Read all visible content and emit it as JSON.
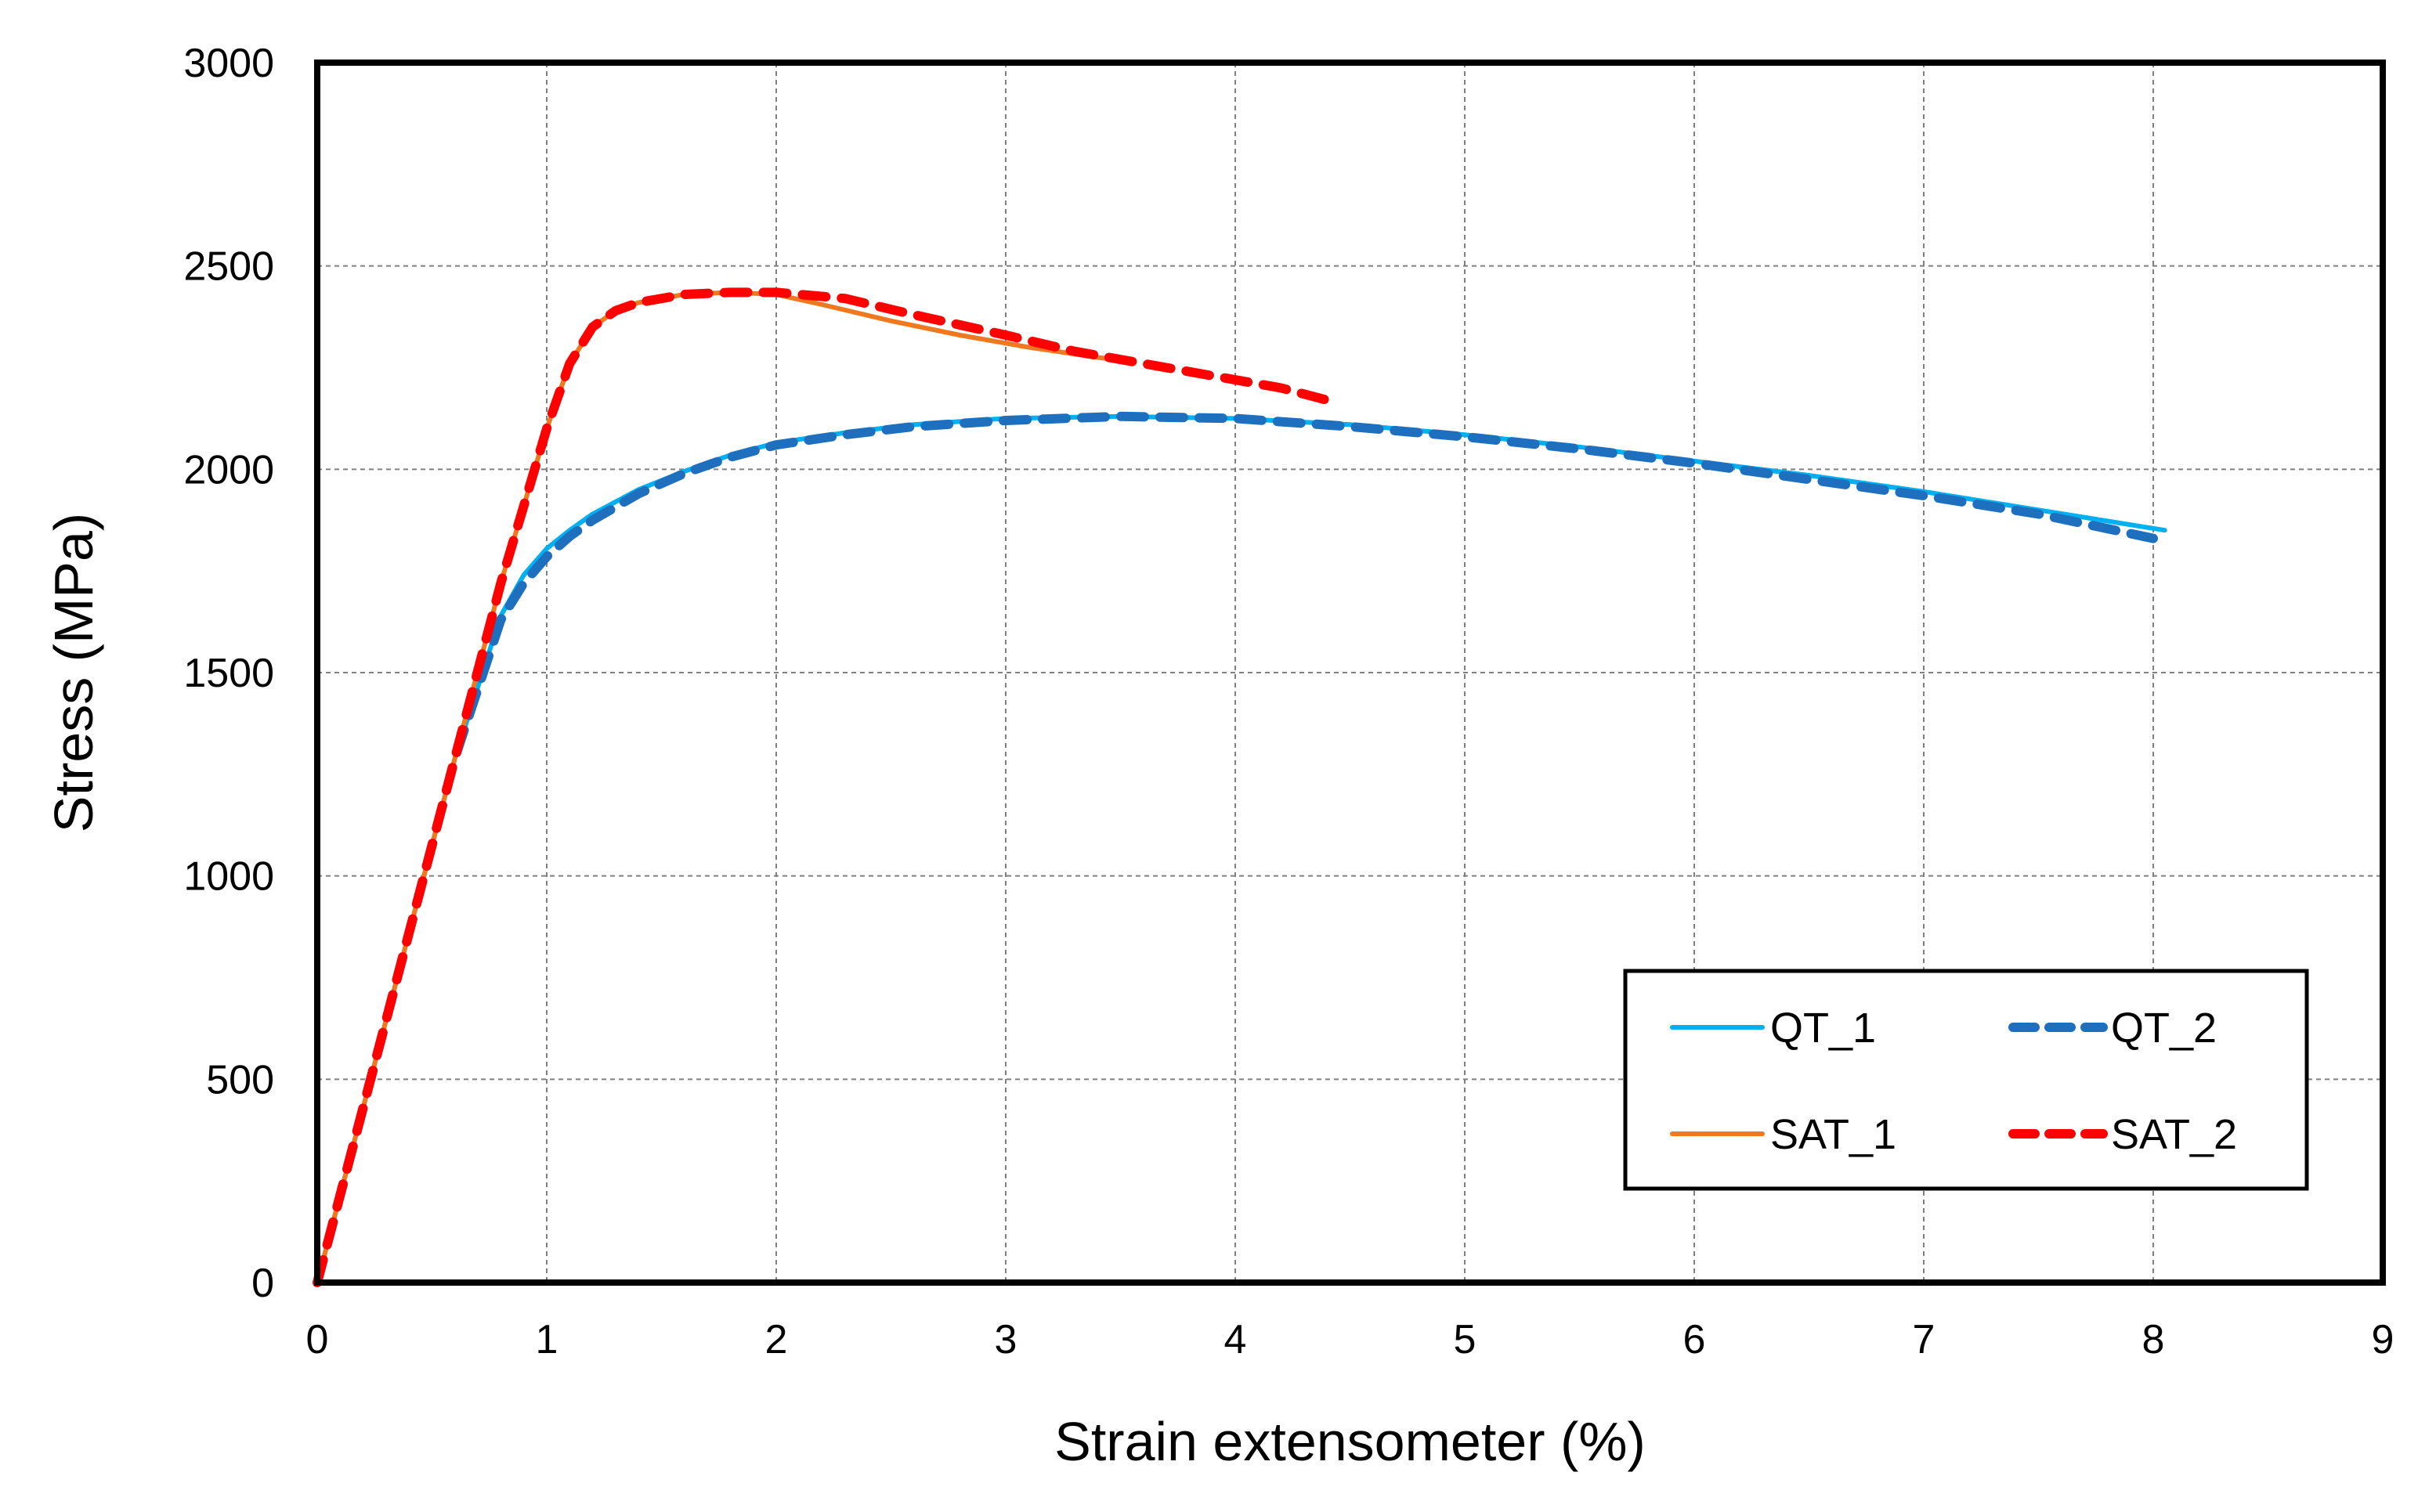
{
  "chart_data": {
    "type": "line",
    "title": "",
    "xlabel": "Strain extensometer (%)",
    "ylabel": "Stress (MPa)",
    "xlim": [
      0,
      9
    ],
    "ylim": [
      0,
      3000
    ],
    "x_ticks": [
      0,
      1,
      2,
      3,
      4,
      5,
      6,
      7,
      8,
      9
    ],
    "y_ticks": [
      0,
      500,
      1000,
      1500,
      2000,
      2500,
      3000
    ],
    "x_tick_labels": [
      "0",
      "1",
      "2",
      "3",
      "4",
      "5",
      "6",
      "7",
      "8",
      "9"
    ],
    "y_tick_labels": [
      "0",
      "500",
      "1000",
      "1500",
      "2000",
      "2500",
      "3000"
    ],
    "grid": true,
    "legend_position": "bottom-right",
    "series": [
      {
        "name": "QT_1",
        "color": "#00b0f0",
        "style": "solid",
        "x": [
          0,
          0.2,
          0.4,
          0.6,
          0.8,
          0.9,
          1.0,
          1.1,
          1.2,
          1.4,
          1.6,
          1.8,
          2.0,
          2.3,
          2.6,
          3.0,
          3.5,
          4.0,
          4.5,
          5.0,
          5.5,
          6.0,
          6.5,
          7.0,
          7.5,
          8.05
        ],
        "y": [
          0,
          430,
          860,
          1290,
          1640,
          1740,
          1805,
          1850,
          1890,
          1950,
          1995,
          2035,
          2065,
          2090,
          2110,
          2125,
          2130,
          2125,
          2110,
          2085,
          2055,
          2020,
          1985,
          1945,
          1900,
          1850
        ]
      },
      {
        "name": "QT_2",
        "color": "#1f6fbf",
        "style": "dashed",
        "x": [
          0,
          0.2,
          0.4,
          0.6,
          0.8,
          0.9,
          1.0,
          1.1,
          1.2,
          1.4,
          1.6,
          1.8,
          2.0,
          2.3,
          2.6,
          3.0,
          3.5,
          4.0,
          4.5,
          5.0,
          5.5,
          6.0,
          6.5,
          7.0,
          7.5,
          8.0
        ],
        "y": [
          0,
          430,
          860,
          1290,
          1630,
          1720,
          1785,
          1835,
          1875,
          1940,
          1990,
          2030,
          2060,
          2085,
          2105,
          2120,
          2130,
          2125,
          2105,
          2080,
          2050,
          2015,
          1975,
          1935,
          1890,
          1830
        ]
      },
      {
        "name": "SAT_1",
        "color": "#f0781e",
        "style": "solid",
        "x": [
          0,
          0.2,
          0.4,
          0.6,
          0.8,
          1.0,
          1.1,
          1.2,
          1.3,
          1.4,
          1.6,
          1.8,
          2.0,
          2.2,
          2.5,
          2.8,
          3.1,
          3.4,
          3.55
        ],
        "y": [
          0,
          430,
          860,
          1290,
          1720,
          2100,
          2260,
          2350,
          2390,
          2410,
          2430,
          2435,
          2430,
          2405,
          2365,
          2330,
          2300,
          2275,
          2265
        ]
      },
      {
        "name": "SAT_2",
        "color": "#ff0000",
        "style": "dashed",
        "x": [
          0,
          0.2,
          0.4,
          0.6,
          0.8,
          1.0,
          1.1,
          1.2,
          1.3,
          1.4,
          1.6,
          1.8,
          2.0,
          2.3,
          2.6,
          3.0,
          3.3,
          3.6,
          3.9,
          4.2,
          4.4
        ],
        "y": [
          0,
          430,
          860,
          1290,
          1720,
          2100,
          2260,
          2350,
          2390,
          2410,
          2430,
          2435,
          2435,
          2420,
          2380,
          2330,
          2290,
          2260,
          2230,
          2200,
          2170
        ]
      }
    ]
  }
}
